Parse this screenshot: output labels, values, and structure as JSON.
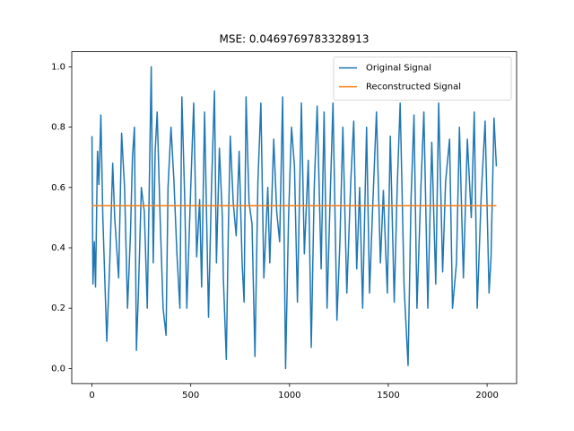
{
  "chart_data": {
    "type": "line",
    "title": "MSE: 0.0469769783328913",
    "xlim": [
      -102.35,
      2149.35
    ],
    "ylim": [
      -0.05,
      1.05
    ],
    "xticks": [
      0,
      500,
      1000,
      1500,
      2000
    ],
    "yticks": [
      {
        "value": 0,
        "label": "0.0"
      },
      {
        "value": 0.2,
        "label": "0.2"
      },
      {
        "value": 0.4,
        "label": "0.4"
      },
      {
        "value": 0.6,
        "label": "0.6"
      },
      {
        "value": 0.8,
        "label": "0.8"
      },
      {
        "value": 1,
        "label": "1.0"
      }
    ],
    "legend": "upper right",
    "series": [
      {
        "name": "Original Signal",
        "color": "#1f77b4",
        "x": [
          0,
          5,
          12,
          18,
          28,
          35,
          45,
          55,
          75,
          90,
          105,
          115,
          135,
          150,
          165,
          180,
          195,
          205,
          215,
          225,
          235,
          250,
          265,
          280,
          300,
          310,
          320,
          330,
          345,
          360,
          375,
          385,
          400,
          415,
          430,
          445,
          455,
          470,
          480,
          500,
          515,
          530,
          545,
          555,
          570,
          590,
          605,
          620,
          630,
          645,
          660,
          665,
          680,
          690,
          700,
          715,
          730,
          745,
          760,
          770,
          780,
          795,
          810,
          825,
          840,
          855,
          870,
          890,
          900,
          920,
          935,
          950,
          965,
          980,
          995,
          1010,
          1025,
          1040,
          1060,
          1075,
          1095,
          1110,
          1125,
          1140,
          1160,
          1175,
          1190,
          1205,
          1220,
          1240,
          1255,
          1270,
          1290,
          1310,
          1325,
          1340,
          1355,
          1370,
          1390,
          1405,
          1420,
          1440,
          1460,
          1475,
          1495,
          1510,
          1530,
          1545,
          1560,
          1580,
          1600,
          1615,
          1630,
          1645,
          1665,
          1680,
          1700,
          1720,
          1740,
          1755,
          1775,
          1790,
          1810,
          1825,
          1845,
          1860,
          1880,
          1900,
          1920,
          1935,
          1950,
          1970,
          1990,
          2010,
          2020,
          2035,
          2047
        ],
        "values": [
          0.77,
          0.28,
          0.42,
          0.27,
          0.72,
          0.61,
          0.84,
          0.5,
          0.09,
          0.35,
          0.68,
          0.5,
          0.3,
          0.78,
          0.6,
          0.2,
          0.45,
          0.7,
          0.8,
          0.06,
          0.25,
          0.6,
          0.52,
          0.2,
          1.0,
          0.35,
          0.72,
          0.85,
          0.5,
          0.2,
          0.11,
          0.6,
          0.8,
          0.62,
          0.38,
          0.2,
          0.9,
          0.55,
          0.2,
          0.6,
          0.88,
          0.37,
          0.56,
          0.27,
          0.85,
          0.17,
          0.6,
          0.92,
          0.35,
          0.73,
          0.5,
          0.3,
          0.03,
          0.45,
          0.77,
          0.55,
          0.44,
          0.72,
          0.35,
          0.22,
          0.9,
          0.55,
          0.48,
          0.04,
          0.62,
          0.88,
          0.3,
          0.6,
          0.35,
          0.76,
          0.52,
          0.42,
          0.9,
          0.0,
          0.5,
          0.8,
          0.67,
          0.22,
          0.88,
          0.38,
          0.69,
          0.07,
          0.6,
          0.87,
          0.33,
          0.85,
          0.2,
          0.55,
          0.88,
          0.16,
          0.42,
          0.8,
          0.25,
          0.62,
          0.82,
          0.33,
          0.6,
          0.2,
          0.8,
          0.25,
          0.52,
          0.85,
          0.35,
          0.59,
          0.25,
          0.77,
          0.22,
          0.6,
          0.88,
          0.27,
          0.01,
          0.56,
          0.84,
          0.2,
          0.6,
          0.85,
          0.2,
          0.75,
          0.28,
          0.88,
          0.32,
          0.62,
          0.76,
          0.2,
          0.35,
          0.8,
          0.3,
          0.76,
          0.5,
          0.85,
          0.2,
          0.57,
          0.82,
          0.25,
          0.37,
          0.83,
          0.67
        ]
      },
      {
        "name": "Reconstructed Signal",
        "color": "#ff7f0e",
        "x": [
          0,
          2047
        ],
        "values": [
          0.54,
          0.54
        ]
      }
    ]
  }
}
